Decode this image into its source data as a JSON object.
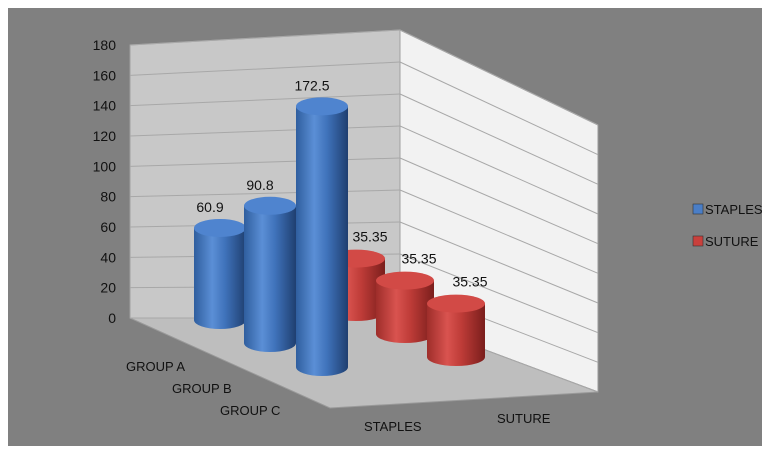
{
  "chart_data": {
    "type": "bar",
    "categories": [
      "GROUP A",
      "GROUP B",
      "GROUP C"
    ],
    "series": [
      {
        "name": "STAPLES",
        "values": [
          60.9,
          90.8,
          172.5
        ],
        "color": "#4A7EC7"
      },
      {
        "name": "SUTURE",
        "values": [
          35.35,
          35.35,
          35.35
        ],
        "color": "#C9403C"
      }
    ],
    "data_labels": {
      "STAPLES": [
        "60.9",
        "90.8",
        "172.5"
      ],
      "SUTURE": [
        "35.35",
        "35.35",
        "35.35"
      ]
    },
    "yticks": [
      0,
      20,
      40,
      60,
      80,
      100,
      120,
      140,
      160,
      180
    ],
    "ylim": [
      0,
      180
    ],
    "depth_axis_labels": [
      "STAPLES",
      "SUTURE"
    ],
    "legend": {
      "placement": "right",
      "entries": [
        "STAPLES",
        "SUTURE"
      ]
    },
    "title": "",
    "xlabel": "",
    "ylabel": "",
    "grid": true,
    "background_color": "#808080",
    "back_wall_color": "#C8C8C8",
    "side_wall_color": "#F2F2F2",
    "floor_color": "#BEBEBE"
  }
}
